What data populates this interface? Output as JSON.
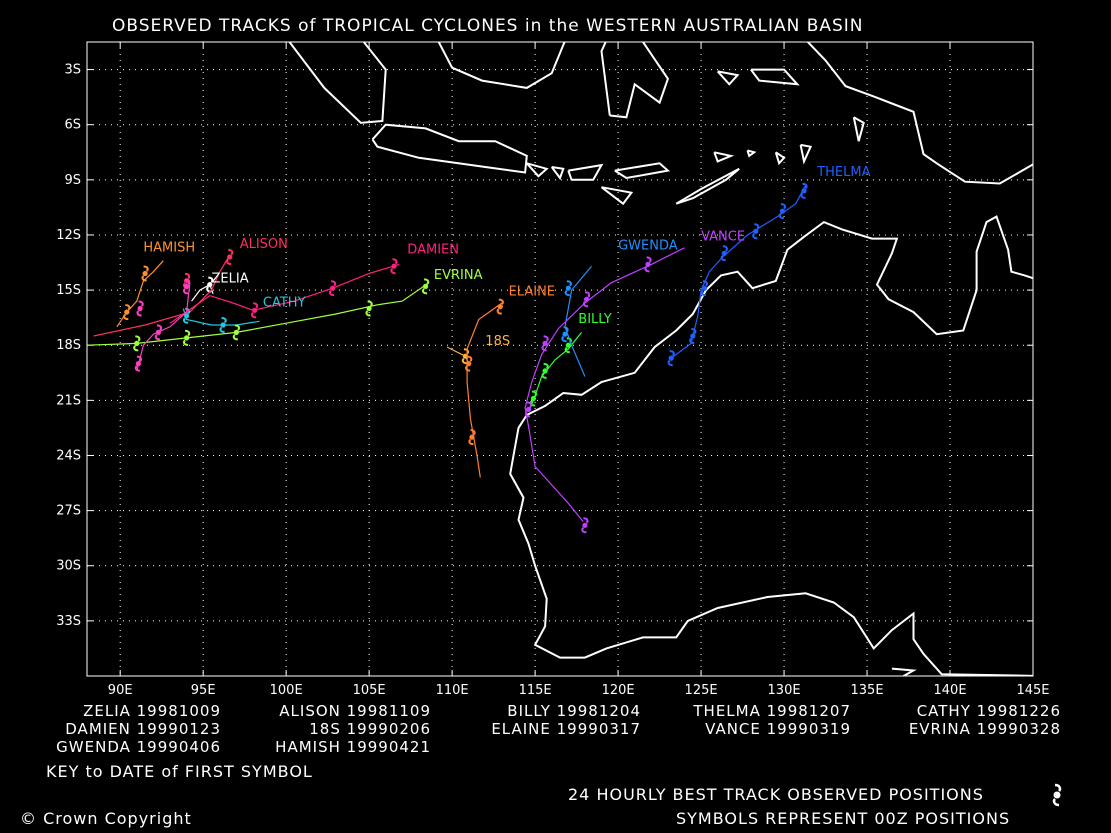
{
  "title": "OBSERVED TRACKS of TROPICAL CYCLONES in the WESTERN AUSTRALIAN BASIN",
  "axes": {
    "lon_labels": [
      "90E",
      "95E",
      "100E",
      "105E",
      "110E",
      "115E",
      "120E",
      "125E",
      "130E",
      "135E",
      "140E",
      "145E"
    ],
    "lat_labels": [
      "3S",
      "6S",
      "9S",
      "12S",
      "15S",
      "18S",
      "21S",
      "24S",
      "27S",
      "30S",
      "33S"
    ],
    "lon_range": [
      88,
      145
    ],
    "lat_range": [
      -1.5,
      -36
    ]
  },
  "key": {
    "rows": [
      [
        "ZELIA 19981009",
        "ALISON 19981109",
        "BILLY 19981204",
        "THELMA 19981207",
        "CATHY 19981226"
      ],
      [
        "DAMIEN 19990123",
        "18S 19990206",
        "ELAINE 19990317",
        "VANCE 19990319",
        "EVRINA 19990328"
      ],
      [
        "GWENDA 19990406",
        "HAMISH 19990421"
      ]
    ],
    "caption": "KEY to DATE of FIRST SYMBOL"
  },
  "footer": {
    "symbols_line1": "24 HOURLY BEST TRACK OBSERVED POSITIONS",
    "symbols_line2": "SYMBOLS REPRESENT 00Z POSITIONS",
    "copyright": "© Crown Copyright"
  },
  "tracks": [
    {
      "name": "ZELIA",
      "color": "#ffffff",
      "label": [
        95.5,
        -14.6
      ],
      "path": [
        [
          94.3,
          -15.6
        ],
        [
          94.8,
          -15.0
        ],
        [
          95.4,
          -14.7
        ],
        [
          95.6,
          -15.2
        ]
      ],
      "symbols": [
        [
          95.4,
          -14.7
        ]
      ]
    },
    {
      "name": "ALISON",
      "color": "#ff3060",
      "label": [
        97.2,
        -12.7
      ],
      "path": [
        [
          88.4,
          -17.5
        ],
        [
          91.5,
          -16.9
        ],
        [
          94.2,
          -16.2
        ],
        [
          95.5,
          -15.0
        ],
        [
          96.0,
          -14.0
        ],
        [
          96.6,
          -13.1
        ]
      ],
      "symbols": [
        [
          94.0,
          -14.5
        ],
        [
          96.6,
          -13.2
        ]
      ]
    },
    {
      "name": "HAMISH",
      "color": "#ff9030",
      "label": [
        91.4,
        -12.9
      ],
      "path": [
        [
          89.8,
          -17.0
        ],
        [
          90.4,
          -16.2
        ],
        [
          91.0,
          -15.6
        ],
        [
          91.4,
          -14.5
        ],
        [
          92.0,
          -14.0
        ],
        [
          92.6,
          -13.4
        ]
      ],
      "symbols": [
        [
          90.4,
          -16.2
        ],
        [
          91.5,
          -14.1
        ]
      ]
    },
    {
      "name": "CATHY",
      "color": "#20c8e0",
      "label": [
        98.6,
        -15.9
      ],
      "path": [
        [
          93.8,
          -16.0
        ],
        [
          94.0,
          -16.6
        ],
        [
          95.5,
          -16.9
        ],
        [
          97.0,
          -16.9
        ],
        [
          98.4,
          -16.7
        ]
      ],
      "symbols": [
        [
          94.0,
          -16.4
        ],
        [
          96.2,
          -16.9
        ]
      ]
    },
    {
      "name": "DAMIEN",
      "color": "#ff2080",
      "label": [
        107.3,
        -13.0
      ],
      "path": [
        [
          93.0,
          -16.8
        ],
        [
          95.4,
          -15.3
        ],
        [
          96.8,
          -15.7
        ],
        [
          98.0,
          -16.1
        ],
        [
          100.5,
          -15.6
        ],
        [
          102.8,
          -14.9
        ],
        [
          105.0,
          -14.1
        ],
        [
          106.8,
          -13.6
        ]
      ],
      "symbols": [
        [
          98.1,
          -16.1
        ],
        [
          102.8,
          -14.9
        ],
        [
          106.5,
          -13.7
        ]
      ]
    },
    {
      "name": "EVRINA",
      "color": "#a0ff40",
      "label": [
        108.9,
        -14.4
      ],
      "path": [
        [
          88.0,
          -18.0
        ],
        [
          91.0,
          -17.9
        ],
        [
          94.0,
          -17.6
        ],
        [
          97.0,
          -17.3
        ],
        [
          100.0,
          -16.8
        ],
        [
          103.0,
          -16.3
        ],
        [
          105.5,
          -15.8
        ],
        [
          107.0,
          -15.6
        ],
        [
          108.6,
          -14.6
        ]
      ],
      "symbols": [
        [
          91.0,
          -17.9
        ],
        [
          94.0,
          -17.6
        ],
        [
          97.0,
          -17.3
        ],
        [
          105.0,
          -16.0
        ],
        [
          108.4,
          -14.8
        ]
      ]
    },
    {
      "name": "NOLABEL_A",
      "color": "#ff40c0",
      "label": null,
      "path": [
        [
          91.0,
          -19.4
        ],
        [
          91.4,
          -18.0
        ],
        [
          92.0,
          -17.4
        ],
        [
          93.0,
          -17.0
        ],
        [
          94.0,
          -16.2
        ],
        [
          94.2,
          -14.6
        ]
      ],
      "symbols": [
        [
          91.1,
          -19.0
        ],
        [
          92.3,
          -17.3
        ],
        [
          91.2,
          -16.0
        ],
        [
          94.0,
          -14.8
        ]
      ]
    },
    {
      "name": "18S",
      "color": "#ffb040",
      "label": [
        112.0,
        -18.0
      ],
      "path": [
        [
          109.7,
          -18.1
        ],
        [
          110.8,
          -18.6
        ],
        [
          111.0,
          -19.0
        ]
      ],
      "symbols": [
        [
          110.8,
          -18.6
        ]
      ]
    },
    {
      "name": "ELAINE",
      "color": "#ff8030",
      "label": [
        113.4,
        -15.3
      ],
      "path": [
        [
          113.0,
          -15.7
        ],
        [
          111.6,
          -16.6
        ],
        [
          110.9,
          -18.2
        ],
        [
          110.9,
          -20.0
        ],
        [
          111.1,
          -22.0
        ],
        [
          111.3,
          -23.0
        ],
        [
          111.5,
          -24.0
        ],
        [
          111.7,
          -25.2
        ]
      ],
      "symbols": [
        [
          112.9,
          -15.9
        ],
        [
          111.0,
          -19.0
        ],
        [
          111.2,
          -23.0
        ]
      ]
    },
    {
      "name": "BILLY",
      "color": "#30ff30",
      "label": [
        117.6,
        -16.8
      ],
      "path": [
        [
          114.6,
          -21.6
        ],
        [
          114.9,
          -21.0
        ],
        [
          115.4,
          -19.7
        ],
        [
          116.2,
          -18.8
        ],
        [
          117.0,
          -18.2
        ],
        [
          117.8,
          -17.3
        ]
      ],
      "symbols": [
        [
          114.9,
          -20.9
        ],
        [
          115.6,
          -19.4
        ],
        [
          117.0,
          -18.0
        ]
      ]
    },
    {
      "name": "GWENDA",
      "color": "#2090ff",
      "label": [
        120.0,
        -12.8
      ],
      "path": [
        [
          118.4,
          -13.7
        ],
        [
          117.2,
          -15.0
        ],
        [
          116.8,
          -17.0
        ],
        [
          117.2,
          -18.0
        ],
        [
          118.0,
          -19.7
        ]
      ],
      "symbols": [
        [
          117.0,
          -14.9
        ],
        [
          116.8,
          -17.4
        ]
      ]
    },
    {
      "name": "VANCE",
      "color": "#c040ff",
      "label": [
        125.0,
        -12.3
      ],
      "path": [
        [
          124.0,
          -12.7
        ],
        [
          122.0,
          -13.6
        ],
        [
          119.6,
          -14.6
        ],
        [
          118.0,
          -15.7
        ],
        [
          116.4,
          -17.1
        ],
        [
          115.4,
          -18.5
        ],
        [
          114.8,
          -20.0
        ],
        [
          114.4,
          -21.4
        ],
        [
          114.6,
          -22.4
        ],
        [
          115.0,
          -24.6
        ],
        [
          116.0,
          -25.6
        ],
        [
          117.0,
          -26.6
        ],
        [
          117.9,
          -27.6
        ]
      ],
      "symbols": [
        [
          121.8,
          -13.6
        ],
        [
          118.1,
          -15.5
        ],
        [
          115.6,
          -17.9
        ],
        [
          114.6,
          -21.5
        ],
        [
          118.0,
          -27.8
        ]
      ]
    },
    {
      "name": "THELMA",
      "color": "#2060ff",
      "label": [
        132.0,
        -8.8
      ],
      "path": [
        [
          131.3,
          -9.3
        ],
        [
          130.7,
          -10.3
        ],
        [
          129.6,
          -11.0
        ],
        [
          127.8,
          -12.0
        ],
        [
          126.3,
          -13.2
        ],
        [
          125.5,
          -14.0
        ],
        [
          125.0,
          -15.0
        ],
        [
          124.8,
          -16.4
        ],
        [
          124.4,
          -17.9
        ],
        [
          123.2,
          -18.7
        ]
      ],
      "symbols": [
        [
          131.2,
          -9.6
        ],
        [
          129.9,
          -10.7
        ],
        [
          128.3,
          -11.8
        ],
        [
          126.4,
          -13.0
        ],
        [
          125.2,
          -14.9
        ],
        [
          124.5,
          -17.5
        ],
        [
          123.2,
          -18.7
        ]
      ]
    }
  ]
}
